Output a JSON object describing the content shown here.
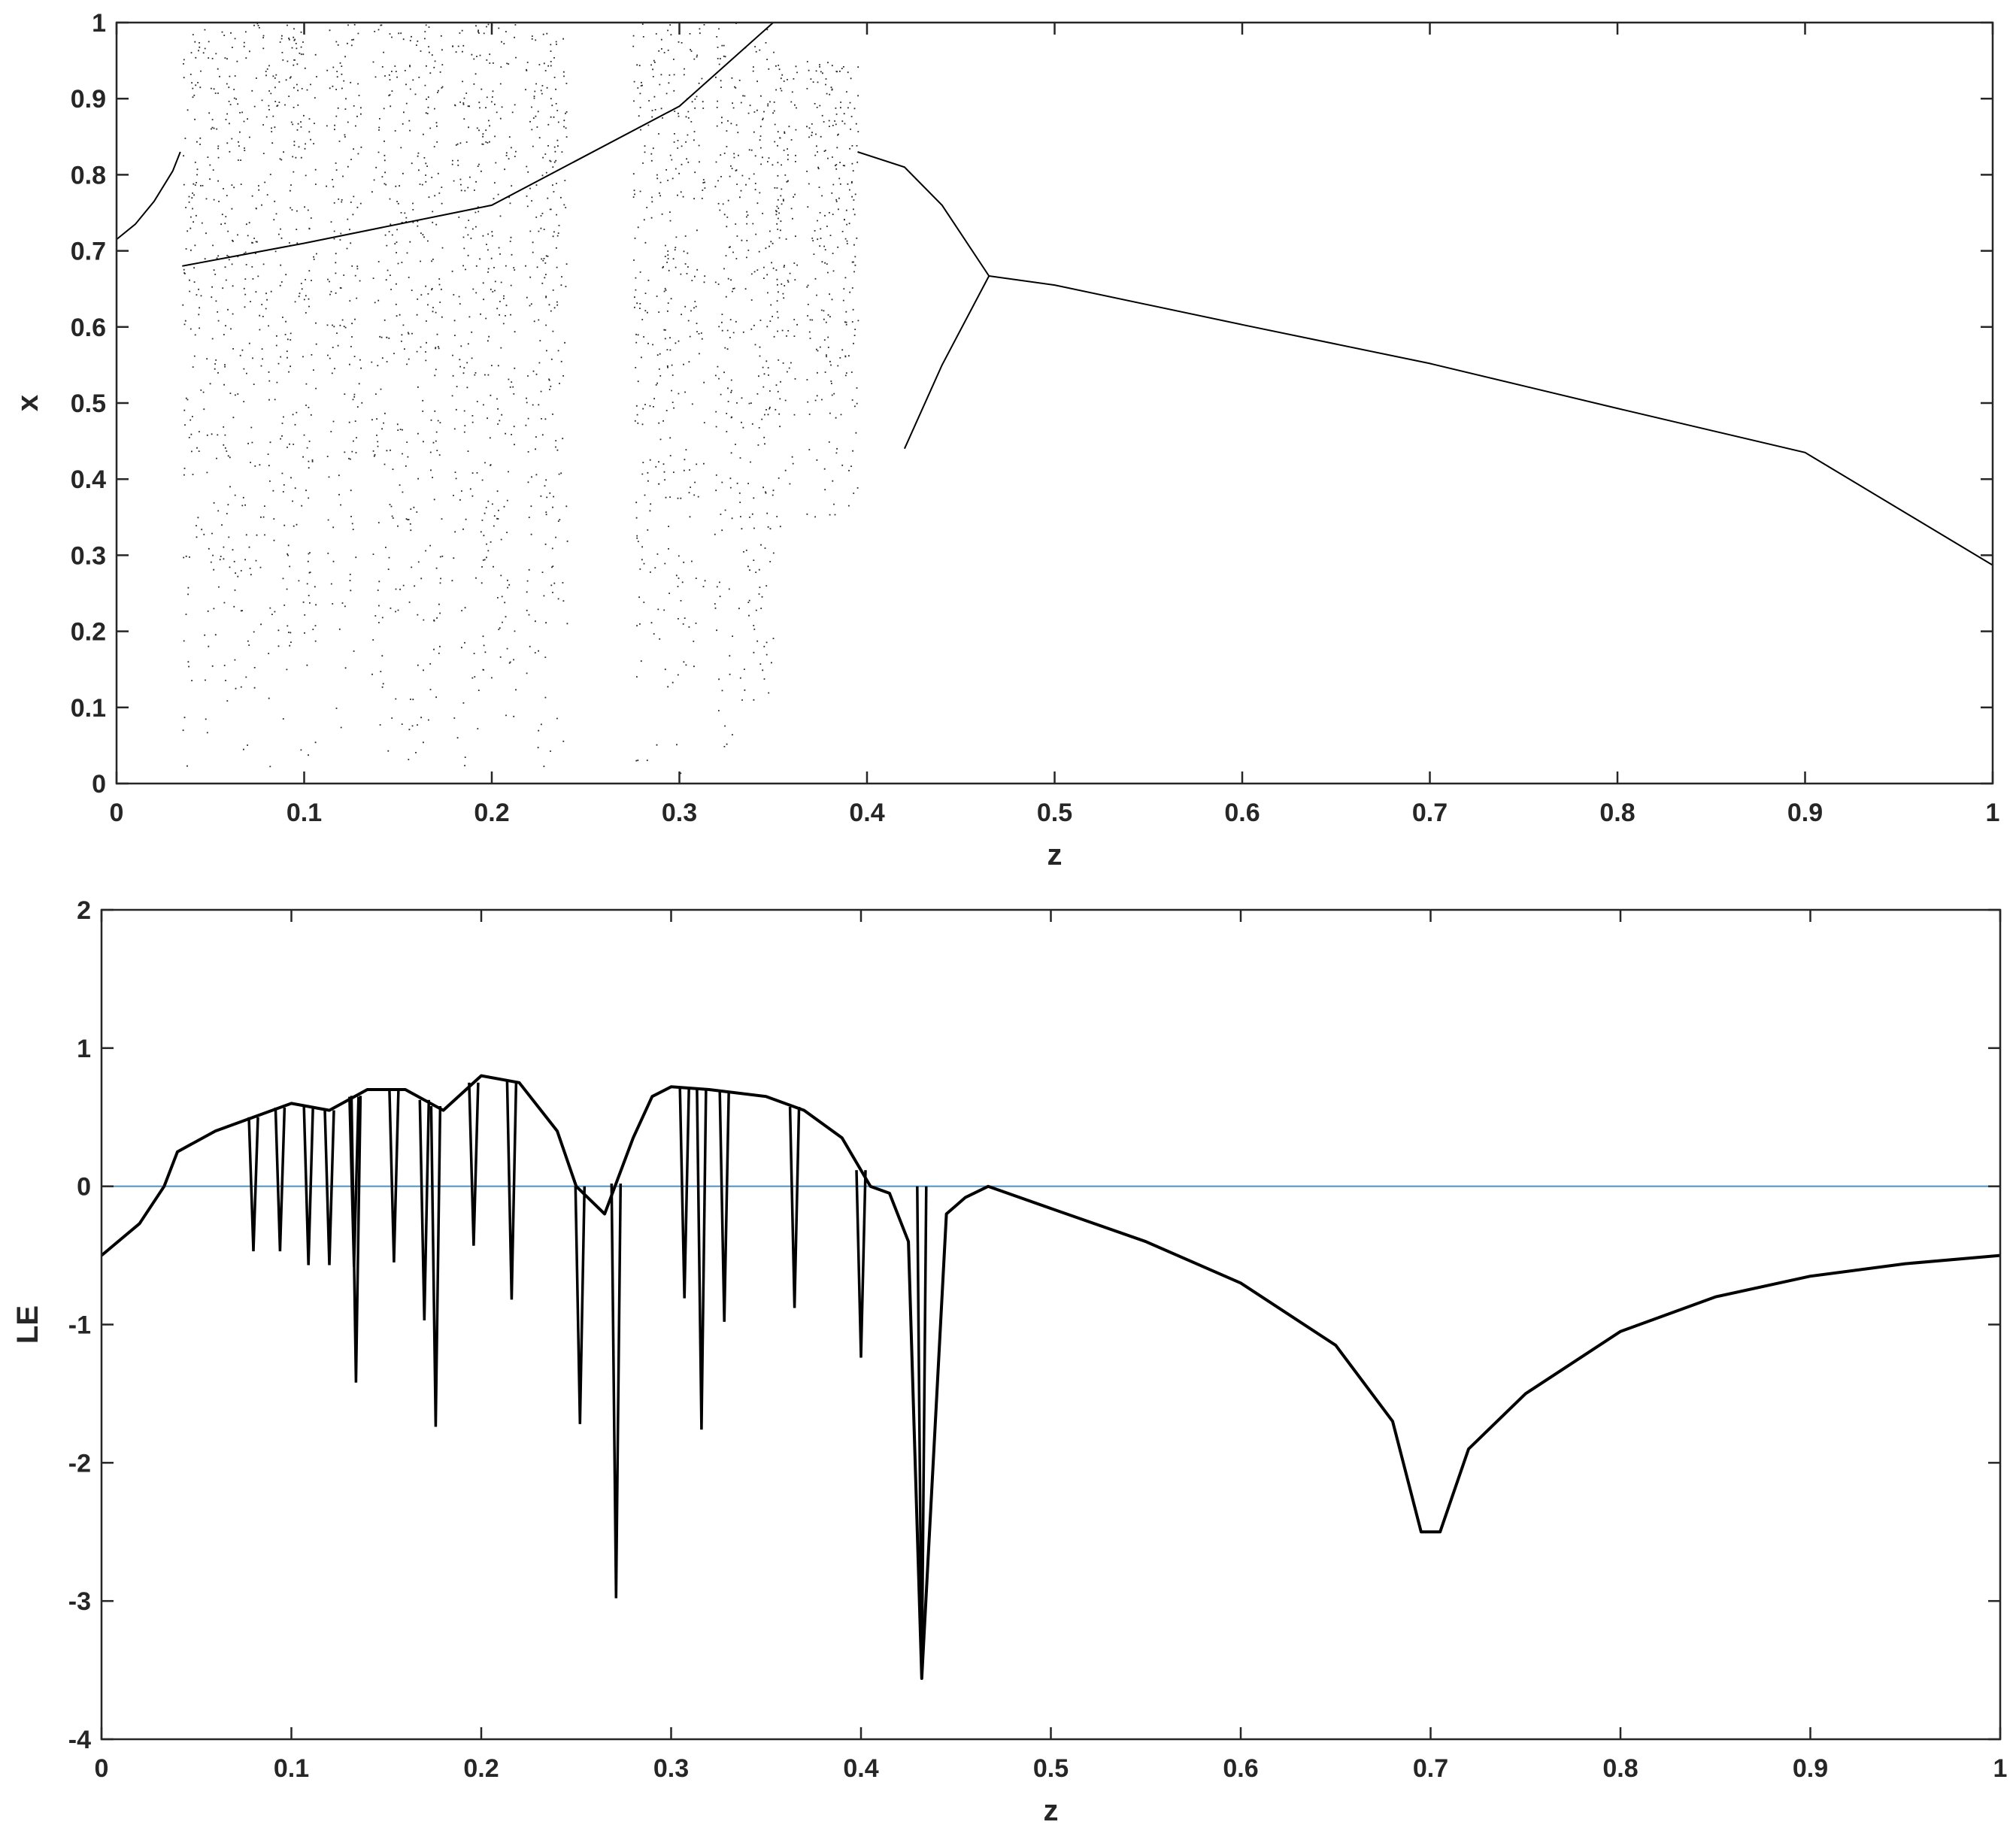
{
  "chart_data": [
    {
      "type": "scatter",
      "title": "",
      "xlabel": "z",
      "ylabel": "x",
      "xlim": [
        0,
        1
      ],
      "ylim": [
        0,
        1
      ],
      "x_ticks": [
        "0",
        "0.1",
        "0.2",
        "0.3",
        "0.4",
        "0.5",
        "0.6",
        "0.7",
        "0.8",
        "0.9",
        "1"
      ],
      "y_ticks": [
        "0",
        "0.1",
        "0.2",
        "0.3",
        "0.4",
        "0.5",
        "0.6",
        "0.7",
        "0.8",
        "0.9",
        "1"
      ],
      "grid": false,
      "marker_color": "#000000",
      "attractor_branches": [
        {
          "x": [
            0.0,
            0.01,
            0.02,
            0.03,
            0.034
          ],
          "y": [
            0.715,
            0.735,
            0.765,
            0.805,
            0.83
          ]
        },
        {
          "x": [
            0.465,
            0.5,
            0.6,
            0.7,
            0.8,
            0.9,
            1.0
          ],
          "y": [
            0.667,
            0.655,
            0.603,
            0.552,
            0.493,
            0.435,
            0.287
          ]
        },
        {
          "x": [
            0.42,
            0.44,
            0.465
          ],
          "y": [
            0.44,
            0.55,
            0.667
          ]
        },
        {
          "x": [
            0.395,
            0.42,
            0.44,
            0.465
          ],
          "y": [
            0.83,
            0.81,
            0.76,
            0.667
          ]
        },
        {
          "x": [
            0.035,
            0.1,
            0.2,
            0.3,
            0.35
          ],
          "y": [
            0.68,
            0.71,
            0.76,
            0.89,
            1.0
          ]
        }
      ],
      "chaotic_bands": [
        {
          "z": [
            0.035,
            0.24
          ],
          "x": [
            0.0,
            1.0
          ]
        },
        {
          "z": [
            0.275,
            0.35
          ],
          "x": [
            0.0,
            1.0
          ]
        },
        {
          "z": [
            0.35,
            0.395
          ],
          "x": [
            0.33,
            0.95
          ]
        }
      ],
      "periodic_windows": [
        0.109,
        0.133,
        0.176,
        0.215,
        0.25,
        0.27,
        0.316,
        0.365
      ]
    },
    {
      "type": "line",
      "title": "",
      "xlabel": "z",
      "ylabel": "LE",
      "xlim": [
        0,
        1
      ],
      "ylim": [
        -4,
        2
      ],
      "x_ticks": [
        "0",
        "0.1",
        "0.2",
        "0.3",
        "0.4",
        "0.5",
        "0.6",
        "0.7",
        "0.8",
        "0.9",
        "1"
      ],
      "y_ticks": [
        "-4",
        "-3",
        "-2",
        "-1",
        "0",
        "1",
        "2"
      ],
      "grid": false,
      "series": [
        {
          "color": "#000000",
          "x": [
            0.0,
            0.02,
            0.033,
            0.04,
            0.06,
            0.08,
            0.1,
            0.12,
            0.14,
            0.16,
            0.18,
            0.2,
            0.22,
            0.24,
            0.25,
            0.265,
            0.28,
            0.29,
            0.3,
            0.32,
            0.35,
            0.37,
            0.39,
            0.405,
            0.415,
            0.425,
            0.432,
            0.445,
            0.455,
            0.467,
            0.5,
            0.55,
            0.6,
            0.65,
            0.68,
            0.695,
            0.705,
            0.72,
            0.75,
            0.8,
            0.85,
            0.9,
            0.95,
            1.0
          ],
          "y": [
            -0.5,
            -0.27,
            0.0,
            0.25,
            0.4,
            0.5,
            0.6,
            0.55,
            0.7,
            0.7,
            0.55,
            0.8,
            0.75,
            0.4,
            0.0,
            -0.2,
            0.35,
            0.65,
            0.72,
            0.7,
            0.65,
            0.55,
            0.35,
            0.0,
            -0.05,
            -0.4,
            -3.56,
            -0.2,
            -0.08,
            0.0,
            -0.16,
            -0.4,
            -0.7,
            -1.15,
            -1.7,
            -2.5,
            -2.5,
            -1.9,
            -1.5,
            -1.05,
            -0.8,
            -0.65,
            -0.56,
            -0.5
          ]
        }
      ],
      "dips": [
        {
          "x": 0.08,
          "y": -0.47
        },
        {
          "x": 0.094,
          "y": -0.47
        },
        {
          "x": 0.109,
          "y": -0.57
        },
        {
          "x": 0.12,
          "y": -0.57
        },
        {
          "x": 0.133,
          "y": -0.58
        },
        {
          "x": 0.134,
          "y": -1.42
        },
        {
          "x": 0.154,
          "y": -0.55
        },
        {
          "x": 0.17,
          "y": -0.97
        },
        {
          "x": 0.176,
          "y": -1.74
        },
        {
          "x": 0.196,
          "y": -0.43
        },
        {
          "x": 0.216,
          "y": -0.82
        },
        {
          "x": 0.252,
          "y": -1.72
        },
        {
          "x": 0.271,
          "y": -2.98
        },
        {
          "x": 0.307,
          "y": -0.81
        },
        {
          "x": 0.316,
          "y": -1.76
        },
        {
          "x": 0.328,
          "y": -0.98
        },
        {
          "x": 0.365,
          "y": -0.88
        },
        {
          "x": 0.4,
          "y": -1.24
        },
        {
          "x": 0.432,
          "y": -3.56
        }
      ],
      "reference_line": {
        "y": 0,
        "color": "#4a90c4"
      }
    }
  ]
}
